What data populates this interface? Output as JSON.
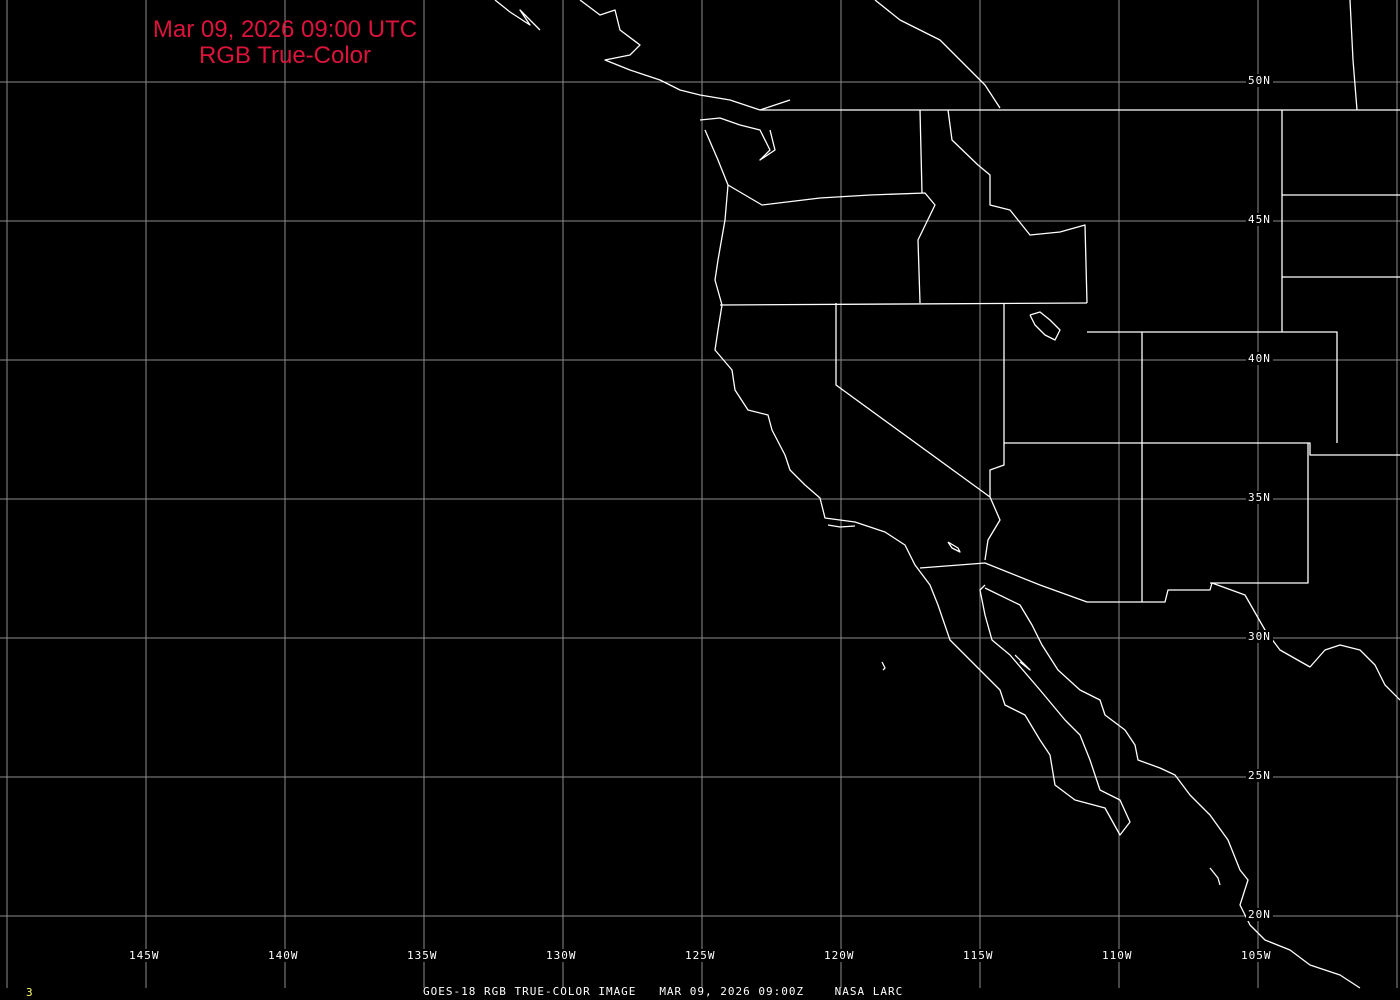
{
  "title": {
    "line1": "Mar 09, 2026 09:00 UTC",
    "line2": "RGB True-Color"
  },
  "caption": {
    "satellite": "GOES-18 RGB TRUE-COLOR IMAGE",
    "datetime": "MAR 09, 2026 09:00Z",
    "source": "NASA LARC"
  },
  "frame_number": "3",
  "longitude_labels": [
    "145W",
    "140W",
    "135W",
    "130W",
    "125W",
    "120W",
    "115W",
    "110W",
    "105W"
  ],
  "latitude_labels": [
    "50N",
    "45N",
    "40N",
    "35N",
    "30N",
    "25N",
    "20N"
  ],
  "colors": {
    "title": "#dc143c",
    "grid": "#8c8c8c",
    "coastline": "#ffffff",
    "frame_number": "#ffff66",
    "background": "#000000"
  }
}
